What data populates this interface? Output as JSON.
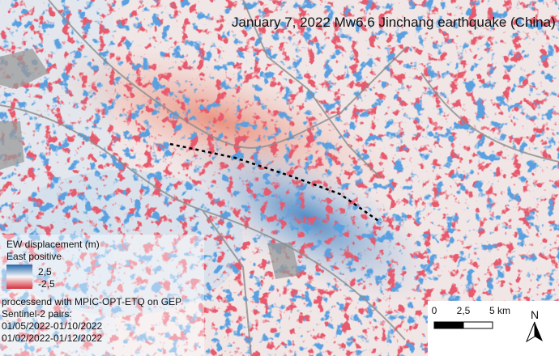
{
  "title": "January 7, 2022 Mw6.6 Jinchang earthquake (China)",
  "legend": {
    "title": "EW displacement (m)",
    "subtitle": "East positive",
    "max_label": "2,5",
    "min_label": "-2,5"
  },
  "notes": [
    "processend  with MPIC-OPT-ETQ on GEP",
    "Sentinel-2 pairs:",
    "01/05/2022-01/10/2022",
    "01/02/2022-01/12/2022"
  ],
  "scale_bar": {
    "labels": [
      "0",
      "2,5",
      "5 km"
    ]
  },
  "north_arrow": "N"
}
